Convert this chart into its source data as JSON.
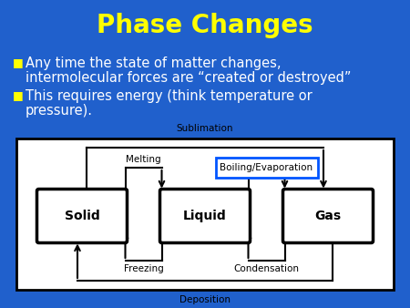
{
  "title": "Phase Changes",
  "title_color": "#FFFF00",
  "title_fontsize": 20,
  "bg_color": "#2060CC",
  "bullet1_line1": "Any time the state of matter changes,",
  "bullet1_line2": "intermolecular forces are “created or destroyed”",
  "bullet2_line1": "This requires energy (think temperature or",
  "bullet2_line2": "pressure).",
  "bullet_color": "#FFFFFF",
  "bullet_fontsize": 10.5,
  "bullet_marker_color": "#FFFF00",
  "states": [
    "Solid",
    "Liquid",
    "Gas"
  ],
  "sublimation": "Sublimation",
  "deposition": "Deposition",
  "melting": "Melting",
  "freezing": "Freezing",
  "boiling": "Boiling/Evaporation",
  "condensation": "Condensation",
  "label_fontsize": 7.5,
  "state_fontsize": 10,
  "boiling_box_color": "#0055FF"
}
